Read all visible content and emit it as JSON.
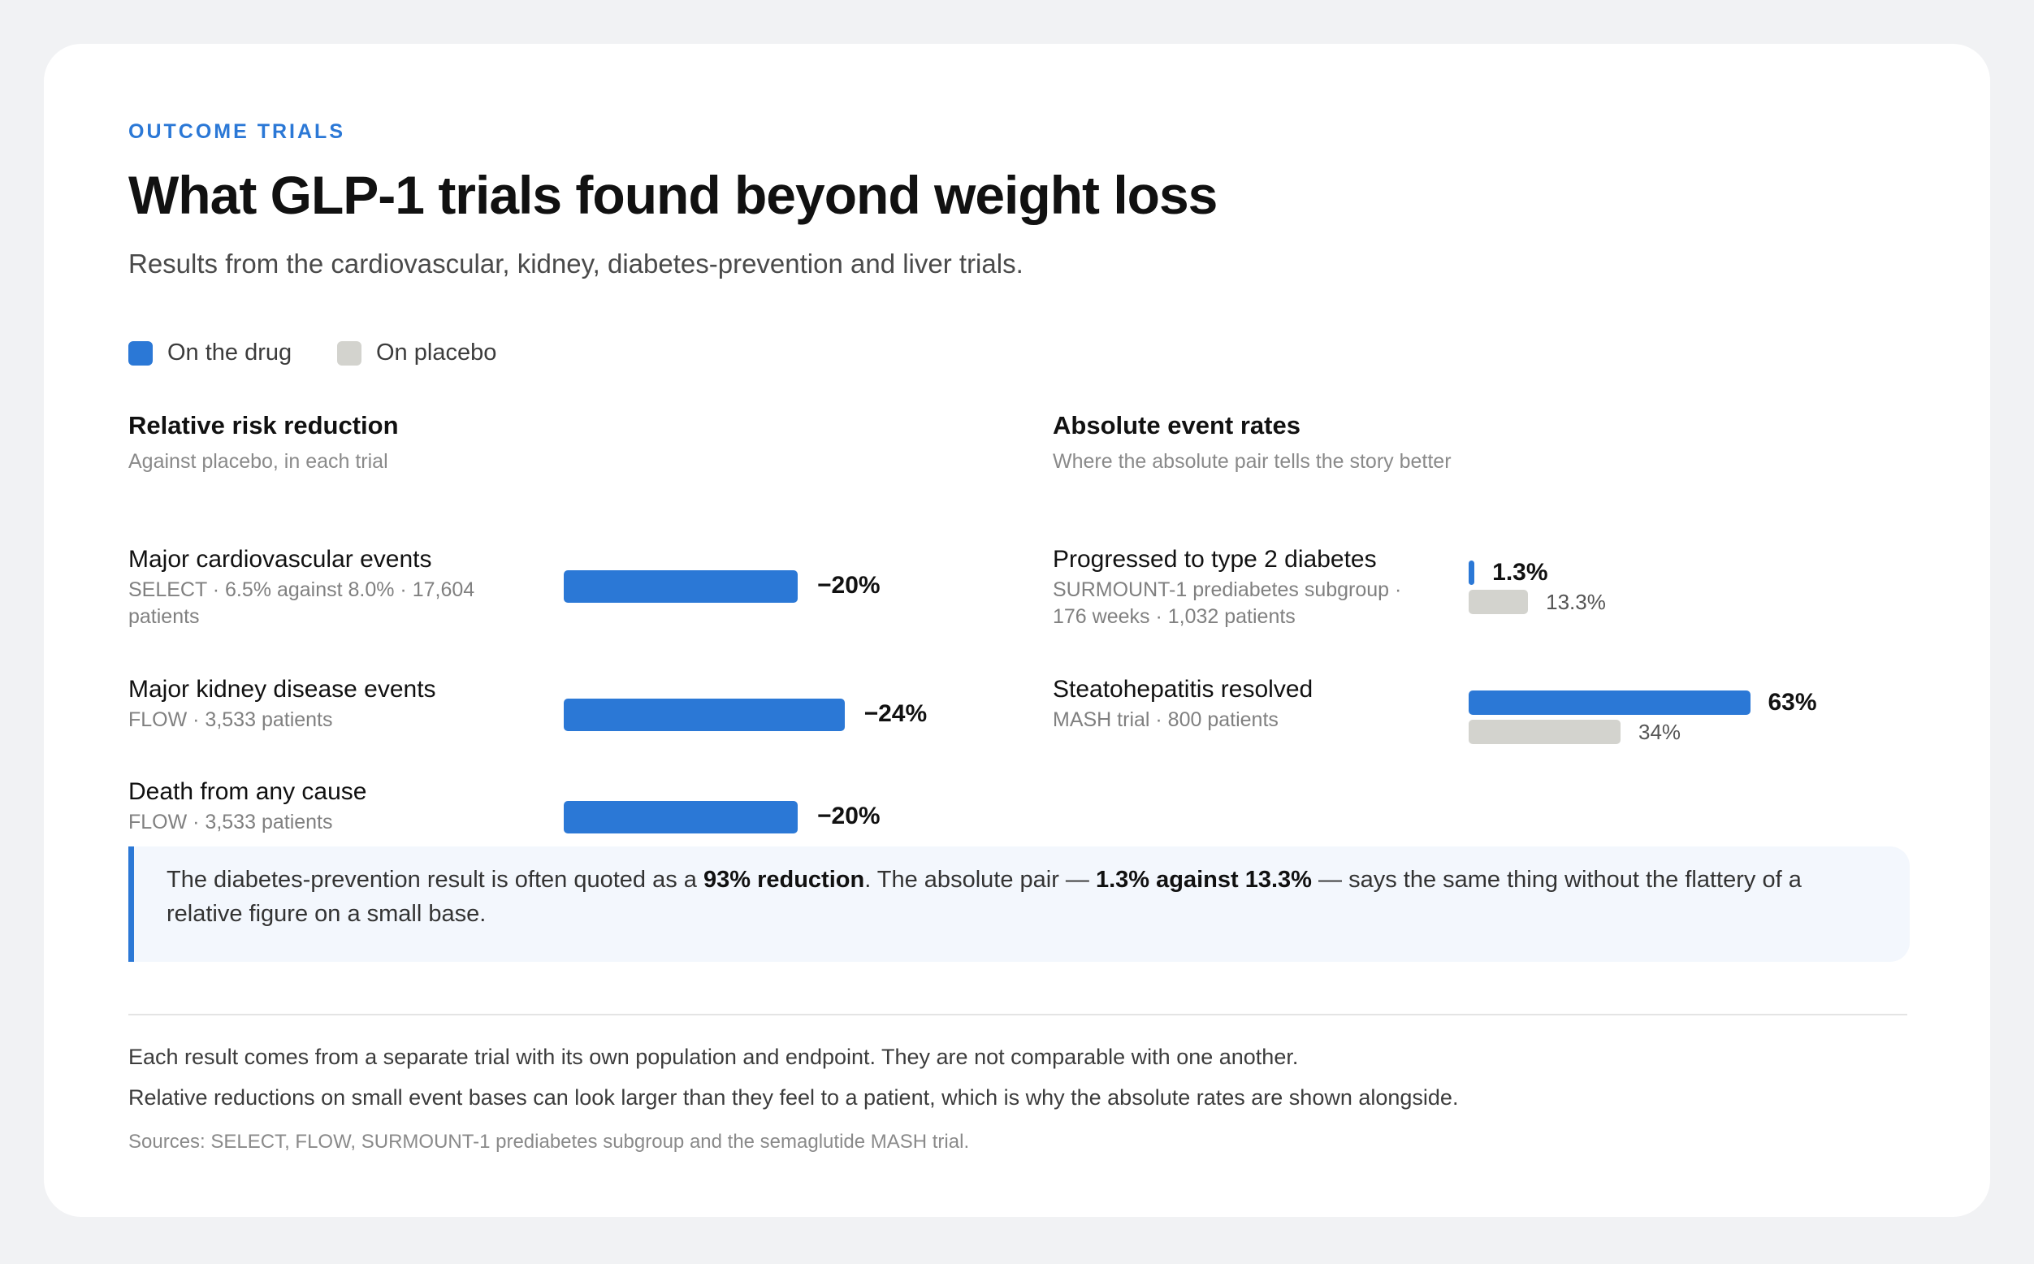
{
  "header": {
    "eyebrow": "OUTCOME TRIALS",
    "title": "What GLP-1 trials found beyond weight loss",
    "subtitle": "Results from the cardiovascular, kidney, diabetes-prevention and liver trials."
  },
  "legend": {
    "drug": "On the drug",
    "placebo": "On placebo"
  },
  "colors": {
    "drug": "#2b78d6",
    "placebo": "#d3d3ce"
  },
  "relative_panel": {
    "title": "Relative risk reduction",
    "subtitle": "Against placebo, in each trial"
  },
  "absolute_panel": {
    "title": "Absolute event rates",
    "subtitle": "Where the absolute pair tells the story better"
  },
  "chart_data": [
    {
      "type": "bar",
      "title": "Relative risk reduction",
      "subtitle": "Against placebo, in each trial",
      "orientation": "horizontal",
      "categories": [
        {
          "label": "Major cardiovascular events",
          "meta": "SELECT · 6.5% against 8.0% · 17,604 patients",
          "value": -20,
          "value_label": "−20%"
        },
        {
          "label": "Major kidney disease events",
          "meta": "FLOW · 3,533 patients",
          "value": -24,
          "value_label": "−24%"
        },
        {
          "label": "Death from any cause",
          "meta": "FLOW · 3,533 patients",
          "value": -20,
          "value_label": "−20%"
        }
      ],
      "unit": "%"
    },
    {
      "type": "bar",
      "title": "Absolute event rates",
      "subtitle": "Where the absolute pair tells the story better",
      "orientation": "horizontal",
      "categories": [
        {
          "label": "Progressed to type 2 diabetes",
          "meta": "SURMOUNT-1 prediabetes subgroup · 176 weeks · 1,032 patients",
          "drug": 1.3,
          "drug_label": "1.3%",
          "placebo": 13.3,
          "placebo_label": "13.3%"
        },
        {
          "label": "Steatohepatitis resolved",
          "meta": "MASH trial · 800 patients",
          "drug": 63,
          "drug_label": "63%",
          "placebo": 34,
          "placebo_label": "34%"
        }
      ],
      "series": [
        {
          "name": "On the drug"
        },
        {
          "name": "On placebo"
        }
      ],
      "unit": "%"
    }
  ],
  "callout": {
    "part1": "The diabetes-prevention result is often quoted as a ",
    "bold1": "93% reduction",
    "part2": ". The absolute pair — ",
    "bold2": "1.3% against 13.3%",
    "part3": " — says the same thing without the flattery of a relative figure on a small base."
  },
  "footer": {
    "note1": "Each result comes from a separate trial with its own population and endpoint. They are not comparable with one another.",
    "note2": "Relative reductions on small event bases can look larger than they feel to a patient, which is why the absolute rates are shown alongside.",
    "sources": "Sources: SELECT, FLOW, SURMOUNT-1 prediabetes subgroup and the semaglutide MASH trial."
  }
}
